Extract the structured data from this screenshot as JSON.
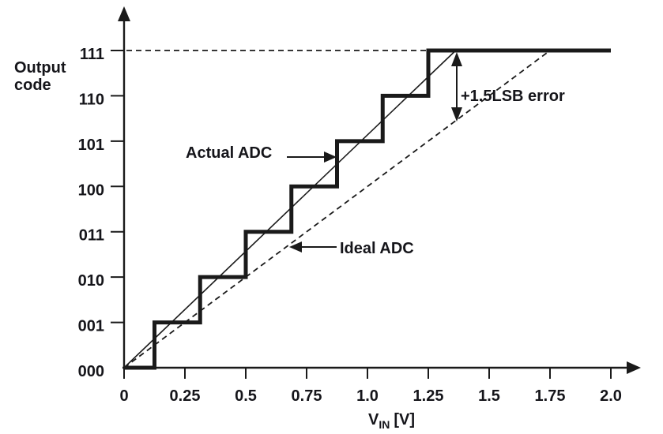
{
  "figure": {
    "background": "#ffffff",
    "ink_color": "#1a1a1a",
    "text_color": "#15151a"
  },
  "chart_data": {
    "type": "line",
    "xlabel": "VIN [V]",
    "xlabel_main": "V",
    "xlabel_sub": "IN",
    "xlabel_unit": "[V]",
    "ylabel": "Output code",
    "ylabel_lines": [
      "Output",
      "code"
    ],
    "xlim": [
      0,
      2.0
    ],
    "ylim_codes": [
      0,
      7
    ],
    "grid": false,
    "x_ticks": [
      "0",
      "0.25",
      "0.5",
      "0.75",
      "1.0",
      "1.25",
      "1.5",
      "1.75",
      "2.0"
    ],
    "x_tick_values": [
      0,
      0.25,
      0.5,
      0.75,
      1.0,
      1.25,
      1.5,
      1.75,
      2.0
    ],
    "y_ticks": [
      "000",
      "001",
      "010",
      "011",
      "100",
      "101",
      "110",
      "111"
    ],
    "y_tick_values": [
      0,
      1,
      2,
      3,
      4,
      5,
      6,
      7
    ],
    "series": [
      {
        "id": "actual-adc",
        "name": "Actual ADC",
        "type": "staircase",
        "style": "solid-bold",
        "start_v": 0,
        "end_v": 2.0,
        "riser_voltages": [
          0.125,
          0.3125,
          0.5,
          0.6875,
          0.875,
          1.0625,
          1.25
        ],
        "codes": [
          "000",
          "001",
          "010",
          "011",
          "100",
          "101",
          "110",
          "111"
        ]
      },
      {
        "id": "actual-adc-gain-line",
        "name": "",
        "type": "line",
        "style": "solid-thin",
        "from_v_code": [
          0,
          0
        ],
        "to_v_code": [
          1.3625,
          7
        ]
      },
      {
        "id": "ideal-adc",
        "name": "Ideal ADC",
        "type": "line",
        "style": "dashed",
        "from_v_code": [
          0,
          0
        ],
        "to_v_code": [
          1.75,
          7
        ]
      }
    ],
    "reference_lines": [
      {
        "id": "full-scale-code-line",
        "code": 7,
        "from_v": 0,
        "to_v": 1.25,
        "style": "dashed"
      }
    ],
    "annotations": {
      "actual_adc_label": "Actual ADC",
      "ideal_adc_label": "Ideal ADC",
      "error_label": "+1.5LSB error",
      "error_arrow": {
        "at_v": 1.3625,
        "from_code": 7,
        "to_code": 5.5
      }
    }
  }
}
